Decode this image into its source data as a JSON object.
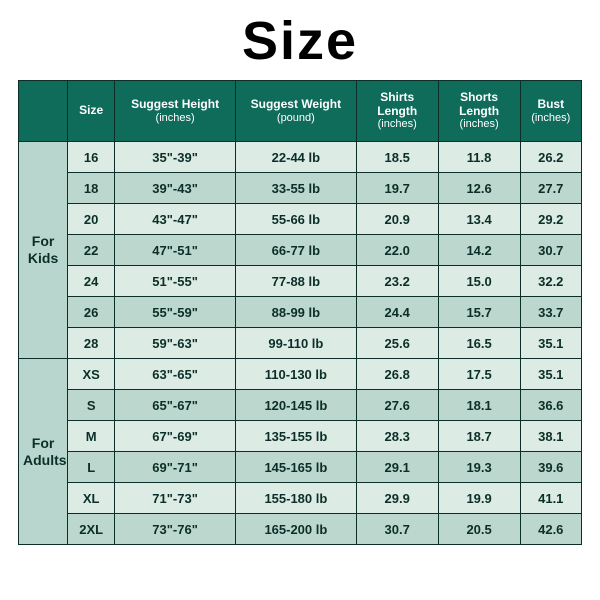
{
  "title": "Size",
  "colors": {
    "header_bg": "#0f6b5a",
    "header_fg": "#ffffff",
    "border": "#0b2f28",
    "row_alt_a": "#dcebe4",
    "row_alt_b": "#bcd7cd",
    "group_bg": "#b8d6cd",
    "text": "#0b2f28",
    "background": "#ffffff"
  },
  "columns": [
    {
      "label": "",
      "sub": ""
    },
    {
      "label": "Size",
      "sub": ""
    },
    {
      "label": "Suggest Height",
      "sub": "(inches)"
    },
    {
      "label": "Suggest Weight",
      "sub": "(pound)"
    },
    {
      "label": "Shirts Length",
      "sub": "(inches)"
    },
    {
      "label": "Shorts Length",
      "sub": "(inches)"
    },
    {
      "label": "Bust",
      "sub": "(inches)"
    }
  ],
  "groups": [
    {
      "label": "For\nKids",
      "rows": [
        {
          "size": "16",
          "height": "35\"-39\"",
          "weight": "22-44 lb",
          "shirts": "18.5",
          "shorts": "11.8",
          "bust": "26.2"
        },
        {
          "size": "18",
          "height": "39\"-43\"",
          "weight": "33-55 lb",
          "shirts": "19.7",
          "shorts": "12.6",
          "bust": "27.7"
        },
        {
          "size": "20",
          "height": "43\"-47\"",
          "weight": "55-66 lb",
          "shirts": "20.9",
          "shorts": "13.4",
          "bust": "29.2"
        },
        {
          "size": "22",
          "height": "47\"-51\"",
          "weight": "66-77 lb",
          "shirts": "22.0",
          "shorts": "14.2",
          "bust": "30.7"
        },
        {
          "size": "24",
          "height": "51\"-55\"",
          "weight": "77-88 lb",
          "shirts": "23.2",
          "shorts": "15.0",
          "bust": "32.2"
        },
        {
          "size": "26",
          "height": "55\"-59\"",
          "weight": "88-99 lb",
          "shirts": "24.4",
          "shorts": "15.7",
          "bust": "33.7"
        },
        {
          "size": "28",
          "height": "59\"-63\"",
          "weight": "99-110 lb",
          "shirts": "25.6",
          "shorts": "16.5",
          "bust": "35.1"
        }
      ]
    },
    {
      "label": "For\nAdults",
      "rows": [
        {
          "size": "XS",
          "height": "63\"-65\"",
          "weight": "110-130 lb",
          "shirts": "26.8",
          "shorts": "17.5",
          "bust": "35.1"
        },
        {
          "size": "S",
          "height": "65\"-67\"",
          "weight": "120-145 lb",
          "shirts": "27.6",
          "shorts": "18.1",
          "bust": "36.6"
        },
        {
          "size": "M",
          "height": "67\"-69\"",
          "weight": "135-155 lb",
          "shirts": "28.3",
          "shorts": "18.7",
          "bust": "38.1"
        },
        {
          "size": "L",
          "height": "69\"-71\"",
          "weight": "145-165 lb",
          "shirts": "29.1",
          "shorts": "19.3",
          "bust": "39.6"
        },
        {
          "size": "XL",
          "height": "71\"-73\"",
          "weight": "155-180 lb",
          "shirts": "29.9",
          "shorts": "19.9",
          "bust": "41.1"
        },
        {
          "size": "2XL",
          "height": "73\"-76\"",
          "weight": "165-200 lb",
          "shirts": "30.7",
          "shorts": "20.5",
          "bust": "42.6"
        }
      ]
    }
  ]
}
